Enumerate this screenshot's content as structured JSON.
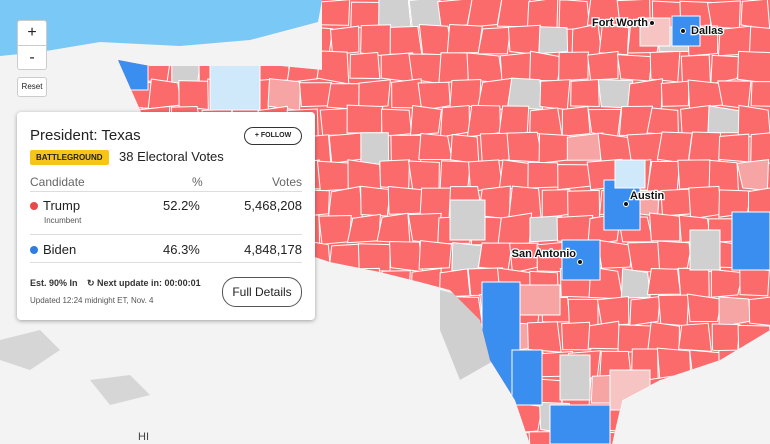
{
  "controls": {
    "zoom_in": "+",
    "zoom_out": "-",
    "reset": "Reset"
  },
  "map": {
    "cities": [
      "Fort Worth",
      "Dallas",
      "Austin",
      "San Antonio"
    ],
    "state_label": "HI"
  },
  "card": {
    "title": "President: Texas",
    "follow": "+ FOLLOW",
    "badge": "BATTLEGROUND",
    "electoral_votes": "38 Electoral Votes",
    "table": {
      "header": [
        "Candidate",
        "%",
        "Votes"
      ],
      "rows": [
        [
          "Trump",
          "52.2%",
          "5,468,208",
          "Incumbent"
        ],
        [
          "Biden",
          "46.3%",
          "4,848,178"
        ]
      ]
    },
    "estimate": "Est. 90% In",
    "next_update": "Next update in: 00:00:01",
    "details_button": "Full Details",
    "updated": "Updated 12:24 midnight ET, Nov. 4"
  }
}
